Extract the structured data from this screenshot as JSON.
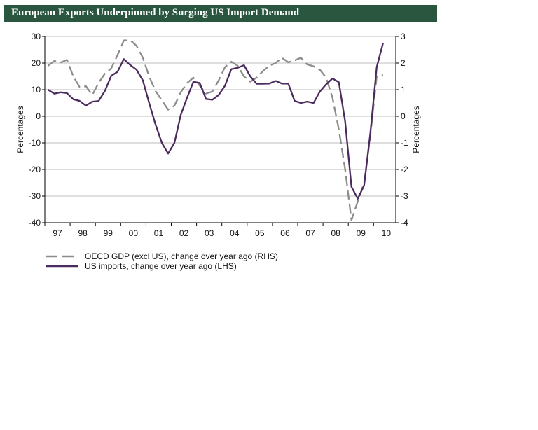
{
  "title": "European Exports Underpinned by Surging US Import Demand",
  "chart_data": {
    "type": "line",
    "title": "European Exports Underpinned by Surging US Import Demand",
    "ylabel_left": "Percentages",
    "ylabel_right": "Percentages",
    "ylim_left": [
      -40,
      30
    ],
    "ylim_right": [
      -4,
      3
    ],
    "yticks_left": [
      "30",
      "20",
      "10",
      "0",
      "-10",
      "-20",
      "-30",
      "-40"
    ],
    "yticks_right": [
      "3",
      "2",
      "1",
      "0",
      "-1",
      "-2",
      "-3",
      "-4"
    ],
    "xticks": [
      "97",
      "98",
      "99",
      "00",
      "01",
      "02",
      "03",
      "04",
      "05",
      "06",
      "07",
      "08",
      "09",
      "10"
    ],
    "x_start": "1997Q1",
    "x_frequency": "quarterly",
    "grid": true,
    "legend_position": "bottom-left",
    "series": [
      {
        "name": "OECD GDP (excl US), change over year ago (RHS)",
        "axis": "right",
        "style": "dashed",
        "color": "#8c8c8c",
        "values": [
          1.9,
          2.08,
          2.02,
          2.12,
          1.5,
          1.1,
          1.13,
          0.8,
          1.25,
          1.6,
          1.8,
          2.3,
          2.85,
          2.86,
          2.65,
          2.2,
          1.5,
          0.95,
          0.6,
          0.25,
          0.4,
          0.9,
          1.25,
          1.45,
          1.15,
          0.85,
          0.93,
          1.35,
          1.85,
          2.05,
          1.9,
          1.5,
          1.3,
          1.45,
          1.7,
          1.9,
          2.0,
          2.2,
          2.03,
          2.1,
          2.2,
          1.95,
          1.88,
          1.75,
          1.45,
          0.7,
          -0.5,
          -2.0,
          -3.9,
          -3.2,
          -2.5,
          -0.7,
          1.5,
          1.55
        ]
      },
      {
        "name": "US imports, change over year ago (LHS)",
        "axis": "left",
        "style": "solid",
        "color": "#4b2a5e",
        "values": [
          10,
          8.5,
          9,
          8.7,
          6.4,
          5.8,
          4,
          5.5,
          5.7,
          9.5,
          15.2,
          16.7,
          21.5,
          19.3,
          17.5,
          13.5,
          5,
          -3,
          -10,
          -14,
          -10,
          0.5,
          7,
          13,
          12.5,
          6.5,
          6.2,
          8,
          11.5,
          17.7,
          18.2,
          19.2,
          15,
          12.2,
          12.2,
          12.3,
          13.3,
          12.3,
          12.3,
          5.8,
          5,
          5.5,
          5,
          9.3,
          12,
          14.2,
          12.8,
          -2,
          -26.5,
          -31,
          -26,
          -6,
          18.5,
          27.5
        ]
      }
    ]
  }
}
